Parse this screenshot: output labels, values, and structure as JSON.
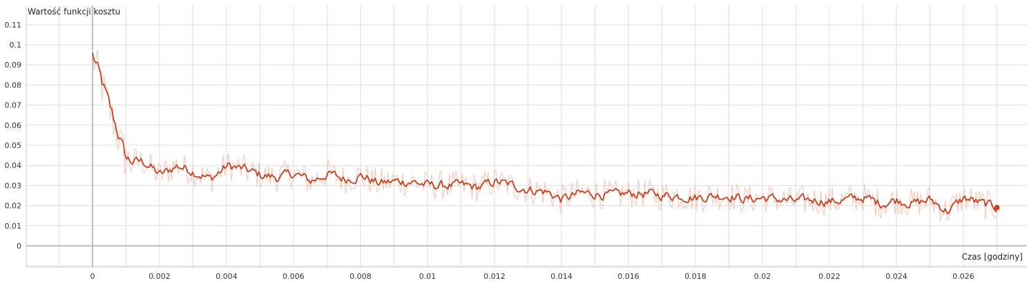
{
  "chart_data": {
    "type": "line",
    "title": "",
    "ylabel": "Wartość funkcji kosztu",
    "xlabel": "Czas [godziny]",
    "xlim": [
      -0.02,
      0.0281
    ],
    "ylim": [
      -0.01,
      0.118
    ],
    "x_ticks": [
      0,
      0.002,
      0.004,
      0.006,
      0.008,
      0.01,
      0.012,
      0.014,
      0.016,
      0.018,
      0.02,
      0.022,
      0.024,
      0.026
    ],
    "x_tick_labels": [
      "0",
      "0.002",
      "0.004",
      "0.006",
      "0.008",
      "0.01",
      "0.012",
      "0.014",
      "0.016",
      "0.018",
      "0.02",
      "0.022",
      "0.024",
      "0.026"
    ],
    "y_ticks": [
      0,
      0.01,
      0.02,
      0.03,
      0.04,
      0.05,
      0.06,
      0.07,
      0.08,
      0.09,
      0.1,
      0.11
    ],
    "y_tick_labels": [
      "0",
      "0.01",
      "0.02",
      "0.03",
      "0.04",
      "0.05",
      "0.06",
      "0.07",
      "0.08",
      "0.09",
      "0.1",
      "0.11"
    ],
    "grid": true,
    "colors": {
      "smoothed": "#c4411f",
      "raw": "#f2c4b6",
      "grid": "#dddddd",
      "axis": "#aaaaaa"
    },
    "series": [
      {
        "x": [
          0,
          0.0005,
          0.001,
          0.0015,
          0.002,
          0.0025,
          0.003,
          0.0035,
          0.004,
          0.0045,
          0.005,
          0.0055,
          0.006,
          0.0065,
          0.007,
          0.0075,
          0.008,
          0.0085,
          0.009,
          0.0095,
          0.01,
          0.0105,
          0.011,
          0.0115,
          0.012,
          0.0125,
          0.013,
          0.0135,
          0.014,
          0.0145,
          0.015,
          0.0155,
          0.016,
          0.0165,
          0.017,
          0.0175,
          0.018,
          0.0185,
          0.019,
          0.0195,
          0.02,
          0.0205,
          0.021,
          0.0215,
          0.022,
          0.0225,
          0.023,
          0.0235,
          0.024,
          0.0245,
          0.025,
          0.0255,
          0.026,
          0.0265,
          0.027
        ],
        "y": [
          0.094,
          0.068,
          0.042,
          0.042,
          0.035,
          0.04,
          0.037,
          0.033,
          0.04,
          0.038,
          0.035,
          0.034,
          0.036,
          0.032,
          0.036,
          0.033,
          0.035,
          0.031,
          0.032,
          0.032,
          0.03,
          0.03,
          0.03,
          0.029,
          0.032,
          0.03,
          0.028,
          0.027,
          0.023,
          0.026,
          0.026,
          0.025,
          0.026,
          0.026,
          0.025,
          0.025,
          0.024,
          0.025,
          0.025,
          0.023,
          0.024,
          0.023,
          0.022,
          0.023,
          0.022,
          0.023,
          0.024,
          0.021,
          0.023,
          0.021,
          0.023,
          0.017,
          0.024,
          0.021,
          0.019
        ]
      }
    ]
  }
}
